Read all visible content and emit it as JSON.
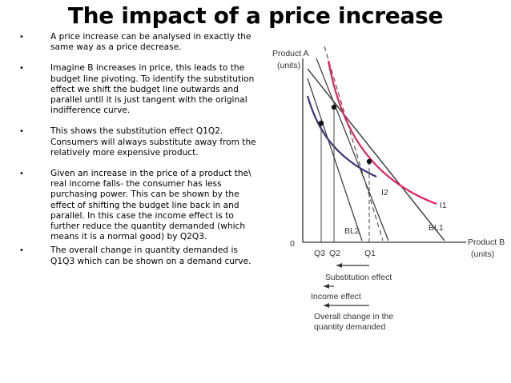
{
  "title": "The impact of a price increase",
  "bullets": [
    "A price increase can be analysed in exactly the same way as a price decrease.",
    " Imagine B increases in price, this leads to the budget line pivoting. To identify the substitution effect we shift the budget line outwards and parallel until it is just tangent with the original indifference curve.",
    " This shows the substitution effect Q1Q2. Consumers will always substitute away from the relatively more expensive product.",
    "Given an increase in the price of a product the\\ real income falls- the consumer has less purchasing power. This can be shown by the effect of shifting the budget line back in and parallel. In this case the income effect is to further reduce the quantity demanded (which means it is a normal good) by Q2Q3.",
    " The overall change in quantity demanded is Q1Q3 which can be shown on a demand curve."
  ],
  "diagram": {
    "y_axis_label_line1": "Product A",
    "y_axis_label_line2": "(units)",
    "x_axis_label_line1": "Product B",
    "x_axis_label_line2": "(units)",
    "origin": "0",
    "q3": "Q3",
    "q2": "Q2",
    "q1": "Q1",
    "curve_i1": "I1",
    "curve_i2": "I2",
    "line_bl1": "BL1",
    "line_bl2": "BL2",
    "substitution_effect": "Substitution effect",
    "income_effect": "Income effect",
    "overall_line1": "Overall change in the",
    "overall_line2": "quantity demanded",
    "colors": {
      "i1_curve": "#e0245e",
      "i2_curve": "#3b2f7a",
      "lines": "#333333"
    }
  }
}
